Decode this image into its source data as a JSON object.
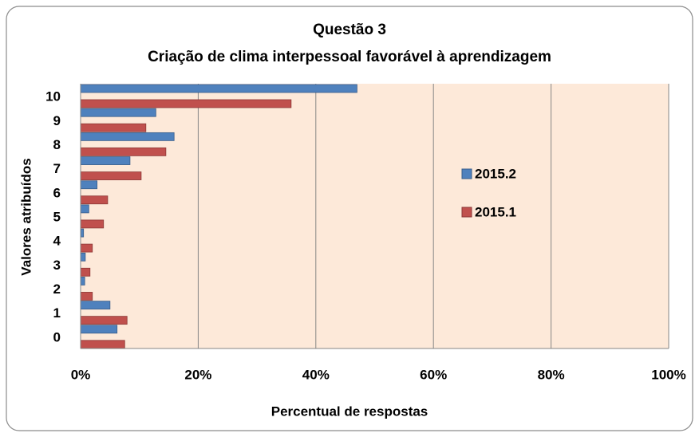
{
  "chart_data": {
    "type": "barh",
    "title": "Questão 3",
    "subtitle": "Criação de clima interpessoal favorável à aprendizagem",
    "xlabel": "Percentual de respostas",
    "ylabel": "Valores atribuídos",
    "categories": [
      "0",
      "1",
      "2",
      "3",
      "4",
      "5",
      "6",
      "7",
      "8",
      "9",
      "10"
    ],
    "series": [
      {
        "name": "2015.2",
        "color": "#4f81bd",
        "values": [
          6.2,
          5.0,
          0.7,
          0.8,
          0.5,
          1.4,
          2.8,
          8.4,
          15.9,
          12.8,
          47
        ]
      },
      {
        "name": "2015.1",
        "color": "#c0504d",
        "values": [
          7.5,
          7.9,
          2.0,
          1.6,
          2.0,
          3.9,
          4.6,
          10.3,
          14.5,
          11.1,
          35.8
        ]
      }
    ],
    "xlim": [
      0,
      100
    ],
    "xticks": [
      {
        "value": 0,
        "label": "0%"
      },
      {
        "value": 20,
        "label": "20%"
      },
      {
        "value": 40,
        "label": "40%"
      },
      {
        "value": 60,
        "label": "60%"
      },
      {
        "value": 80,
        "label": "80%"
      },
      {
        "value": 100,
        "label": "100%"
      }
    ],
    "grid": true,
    "legend": "right"
  }
}
